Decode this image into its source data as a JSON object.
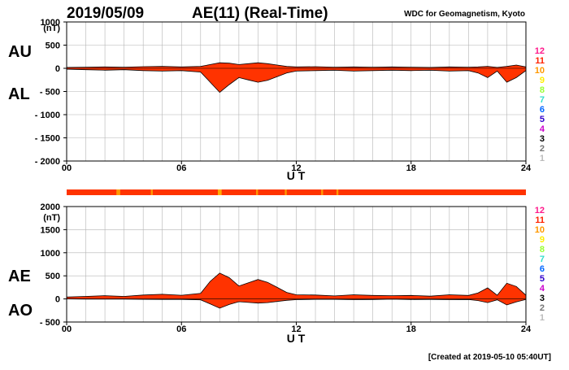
{
  "header": {
    "date": "2019/05/09",
    "title": "AE(11) (Real-Time)",
    "source": "WDC for Geomagnetism, Kyoto"
  },
  "footer": {
    "created": "[Created at 2019-05-10 05:40UT]"
  },
  "colors": {
    "fill": "#ff3300",
    "station_band": "#ff3300",
    "gridline": "#b4b4b4",
    "frame": "#000000"
  },
  "station_scale": {
    "labels": [
      "12",
      "11",
      "10",
      "9",
      "8",
      "7",
      "6",
      "5",
      "4",
      "3",
      "2",
      "1"
    ],
    "colors": [
      "#ff1a8c",
      "#ff2200",
      "#ff9900",
      "#ffee00",
      "#99ff33",
      "#33ddcc",
      "#0066ff",
      "#3300cc",
      "#cc00cc",
      "#000000",
      "#777777",
      "#bbbbbb"
    ]
  },
  "chart_data": [
    {
      "type": "area",
      "panel": "upper",
      "series_labels": [
        "AU",
        "AL"
      ],
      "unit": "(nT)",
      "xlabel": "U T",
      "xlim": [
        0,
        24
      ],
      "xticks": [
        "00",
        "06",
        "12",
        "18",
        "24"
      ],
      "ylim": [
        -2000,
        1000
      ],
      "yticks": [
        "1000",
        "500",
        "0",
        "- 500",
        "- 1000",
        "- 1500",
        "- 2000"
      ],
      "grid": true,
      "x_hours": [
        0,
        1,
        2,
        3,
        4,
        5,
        6,
        7,
        7.5,
        8,
        8.5,
        9,
        9.5,
        10,
        10.5,
        11,
        11.5,
        12,
        13,
        14,
        15,
        16,
        17,
        18,
        19,
        20,
        21,
        21.5,
        22,
        22.5,
        23,
        23.5,
        24
      ],
      "series": [
        {
          "name": "AU",
          "values": [
            20,
            25,
            30,
            25,
            35,
            40,
            30,
            40,
            80,
            120,
            110,
            80,
            100,
            120,
            100,
            70,
            40,
            30,
            35,
            25,
            30,
            25,
            30,
            25,
            20,
            30,
            25,
            30,
            40,
            20,
            40,
            70,
            30
          ]
        },
        {
          "name": "AL",
          "values": [
            -20,
            -30,
            -40,
            -30,
            -50,
            -60,
            -50,
            -80,
            -300,
            -520,
            -350,
            -200,
            -250,
            -300,
            -260,
            -180,
            -100,
            -60,
            -50,
            -40,
            -60,
            -50,
            -40,
            -50,
            -40,
            -60,
            -50,
            -100,
            -200,
            -60,
            -300,
            -200,
            -50
          ]
        }
      ]
    },
    {
      "type": "area",
      "panel": "lower",
      "series_labels": [
        "AE",
        "AO"
      ],
      "unit": "(nT)",
      "xlabel": "U T",
      "xlim": [
        0,
        24
      ],
      "xticks": [
        "00",
        "06",
        "12",
        "18",
        "24"
      ],
      "ylim": [
        -500,
        2000
      ],
      "yticks": [
        "2000",
        "1500",
        "1000",
        "500",
        "0",
        "- 500"
      ],
      "grid": true,
      "x_hours": [
        0,
        1,
        2,
        3,
        4,
        5,
        6,
        7,
        7.5,
        8,
        8.5,
        9,
        9.5,
        10,
        10.5,
        11,
        11.5,
        12,
        13,
        14,
        15,
        16,
        17,
        18,
        19,
        20,
        21,
        21.5,
        22,
        22.5,
        23,
        23.5,
        24
      ],
      "series": [
        {
          "name": "AE",
          "values": [
            40,
            55,
            70,
            55,
            85,
            100,
            80,
            120,
            380,
            560,
            460,
            280,
            350,
            420,
            360,
            250,
            140,
            90,
            85,
            65,
            90,
            75,
            70,
            75,
            60,
            90,
            75,
            130,
            240,
            80,
            340,
            270,
            80
          ]
        },
        {
          "name": "AO",
          "values": [
            0,
            -3,
            -5,
            -3,
            -8,
            -10,
            -10,
            -20,
            -110,
            -200,
            -120,
            -60,
            -75,
            -90,
            -80,
            -55,
            -30,
            -15,
            -8,
            -8,
            -15,
            -12,
            -5,
            -12,
            -10,
            -15,
            -12,
            -35,
            -80,
            -20,
            -130,
            -65,
            -10
          ]
        }
      ]
    }
  ]
}
